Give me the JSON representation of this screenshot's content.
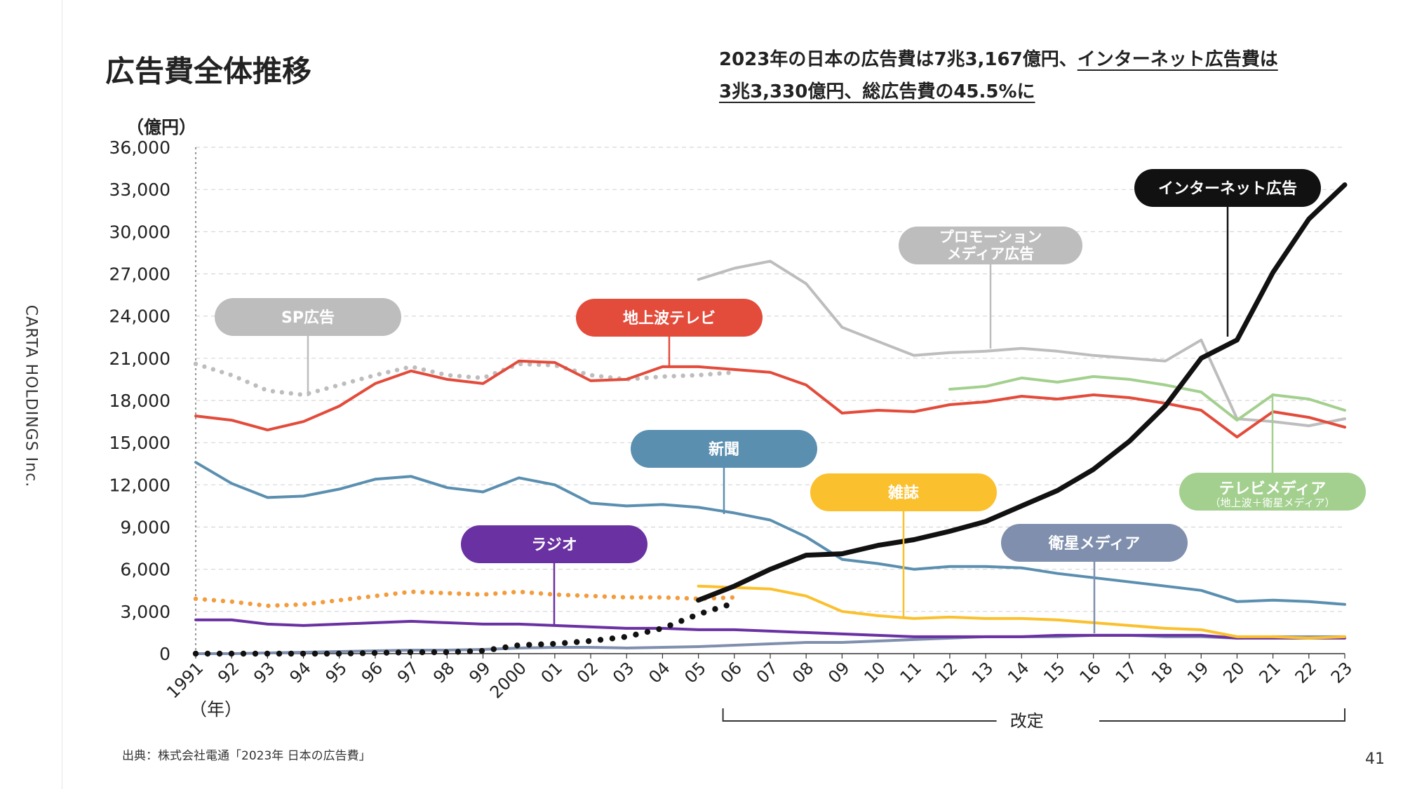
{
  "page": {
    "title": "広告費全体推移",
    "headline_plain": "2023年の日本の広告費は7兆3,167億円、",
    "headline_underlined_1": "インターネット広告費は",
    "headline_underlined_2": "3兆3,330億円、総広告費の45.5%に",
    "company": "CARTA HOLDINGS Inc.",
    "source": "出典：株式会社電通「2023年 日本の広告費」",
    "page_number": "41"
  },
  "chart_data": {
    "type": "line",
    "unit_label": "（億円）",
    "year_label": "（年）",
    "revision_label": "改定",
    "ylim": [
      0,
      36000
    ],
    "yticks": [
      "0",
      "3,000",
      "6,000",
      "9,000",
      "12,000",
      "15,000",
      "18,000",
      "21,000",
      "24,000",
      "27,000",
      "30,000",
      "33,000",
      "36,000"
    ],
    "x_years": [
      1991,
      1992,
      1993,
      1994,
      1995,
      1996,
      1997,
      1998,
      1999,
      2000,
      2001,
      2002,
      2003,
      2004,
      2005,
      2006,
      2007,
      2008,
      2009,
      2010,
      2011,
      2012,
      2013,
      2014,
      2015,
      2016,
      2017,
      2018,
      2019,
      2020,
      2021,
      2022,
      2023
    ],
    "x_tick_labels": [
      "1991",
      "92",
      "93",
      "94",
      "95",
      "96",
      "97",
      "98",
      "99",
      "2000",
      "01",
      "02",
      "03",
      "04",
      "05",
      "06",
      "07",
      "08",
      "09",
      "10",
      "11",
      "12",
      "13",
      "14",
      "15",
      "16",
      "17",
      "18",
      "19",
      "20",
      "21",
      "22",
      "23"
    ],
    "series": [
      {
        "name": "SP広告",
        "color": "#bdbdbd",
        "style": "dotted",
        "x_start": 1991,
        "values": [
          20600,
          19800,
          18700,
          18400,
          19100,
          19800,
          20400,
          19800,
          19600,
          20600,
          20500,
          19800,
          19500,
          19700,
          19800,
          20000
        ]
      },
      {
        "name": "プロモーションメディア広告",
        "color": "#bdbdbd",
        "style": "solid",
        "x_start": 2005,
        "values": [
          26600,
          27400,
          27900,
          26300,
          23200,
          22200,
          21200,
          21400,
          21500,
          21700,
          21500,
          21200,
          21000,
          20800,
          22300,
          16700,
          16500,
          16200,
          16700
        ]
      },
      {
        "name": "地上波テレビ",
        "color": "#e34b3b",
        "style": "solid",
        "x_start": 1991,
        "values": [
          16900,
          16600,
          15900,
          16500,
          17600,
          19200,
          20100,
          19500,
          19200,
          20800,
          20700,
          19400,
          19500,
          20400,
          20400,
          20200,
          20000,
          19100,
          17100,
          17300,
          17200,
          17700,
          17900,
          18300,
          18100,
          18400,
          18200,
          17800,
          17300,
          15400,
          17200,
          16800,
          16100
        ]
      },
      {
        "name": "テレビメディア",
        "color": "#a3d08e",
        "style": "solid",
        "x_start": 2012,
        "values": [
          18800,
          19000,
          19600,
          19300,
          19700,
          19500,
          19100,
          18600,
          16600,
          18400,
          18100,
          17300
        ]
      },
      {
        "name": "新聞",
        "color": "#5b8fb0",
        "style": "solid",
        "x_start": 1991,
        "values": [
          13600,
          12100,
          11100,
          11200,
          11700,
          12400,
          12600,
          11800,
          11500,
          12500,
          12000,
          10700,
          10500,
          10600,
          10400,
          10000,
          9500,
          8300,
          6700,
          6400,
          6000,
          6200,
          6200,
          6100,
          5700,
          5400,
          5100,
          4800,
          4500,
          3700,
          3800,
          3700,
          3500
        ]
      },
      {
        "name": "雑誌",
        "color": "#fbc02d",
        "style": "solid",
        "x_start": 2005,
        "values": [
          4800,
          4700,
          4600,
          4100,
          3000,
          2700,
          2500,
          2600,
          2500,
          2500,
          2400,
          2200,
          2000,
          1800,
          1700,
          1200,
          1200,
          1100,
          1200
        ]
      },
      {
        "name": "雑誌（改定前）",
        "color": "#f39c3d",
        "style": "dotted",
        "x_start": 1991,
        "values": [
          3900,
          3700,
          3400,
          3500,
          3800,
          4100,
          4400,
          4300,
          4200,
          4400,
          4200,
          4100,
          4000,
          4000,
          3900,
          4000
        ]
      },
      {
        "name": "ラジオ",
        "color": "#6a31a2",
        "style": "solid",
        "x_start": 1991,
        "values": [
          2400,
          2400,
          2100,
          2000,
          2100,
          2200,
          2300,
          2200,
          2100,
          2100,
          2000,
          1900,
          1800,
          1800,
          1700,
          1700,
          1600,
          1500,
          1400,
          1300,
          1200,
          1200,
          1200,
          1200,
          1300,
          1300,
          1300,
          1300,
          1300,
          1100,
          1100,
          1100,
          1100
        ]
      },
      {
        "name": "衛星メディア",
        "color": "#7f8fad",
        "style": "solid",
        "x_start": 1991,
        "values": [
          0,
          0,
          50,
          100,
          150,
          200,
          250,
          250,
          300,
          400,
          450,
          450,
          400,
          450,
          500,
          600,
          700,
          800,
          800,
          900,
          1000,
          1100,
          1200,
          1200,
          1200,
          1300,
          1300,
          1200,
          1200,
          1100,
          1200,
          1200,
          1200
        ]
      },
      {
        "name": "インターネット広告",
        "color": "#111111",
        "style": "solid",
        "x_start": 2005,
        "values": [
          3800,
          4800,
          6000,
          7000,
          7100,
          7700,
          8100,
          8700,
          9400,
          10500,
          11600,
          13100,
          15100,
          17600,
          21000,
          22300,
          27100,
          30900,
          33330
        ]
      },
      {
        "name": "インターネット広告（1996年〜）",
        "color": "#111111",
        "style": "dotted",
        "x_start": 1991,
        "values": [
          0,
          0,
          0,
          0,
          0,
          50,
          100,
          100,
          200,
          600,
          700,
          900,
          1200,
          1800,
          2800,
          3600
        ]
      }
    ],
    "callouts": [
      {
        "label": "SP広告",
        "sublabel": "",
        "bg": "#bdbdbd"
      },
      {
        "label": "プロモーション",
        "sublabel": "メディア広告",
        "bg": "#bdbdbd"
      },
      {
        "label": "地上波テレビ",
        "sublabel": "",
        "bg": "#e34b3b"
      },
      {
        "label": "新聞",
        "sublabel": "",
        "bg": "#5b8fb0"
      },
      {
        "label": "雑誌",
        "sublabel": "",
        "bg": "#fbc02d"
      },
      {
        "label": "ラジオ",
        "sublabel": "",
        "bg": "#6a31a2"
      },
      {
        "label": "衛星メディア",
        "sublabel": "",
        "bg": "#7f8fad"
      },
      {
        "label": "インターネット広告",
        "sublabel": "",
        "bg": "#111111"
      },
      {
        "label": "テレビメディア",
        "sublabel": "（地上波＋衛星メディア）",
        "bg": "#a3d08e"
      }
    ]
  }
}
